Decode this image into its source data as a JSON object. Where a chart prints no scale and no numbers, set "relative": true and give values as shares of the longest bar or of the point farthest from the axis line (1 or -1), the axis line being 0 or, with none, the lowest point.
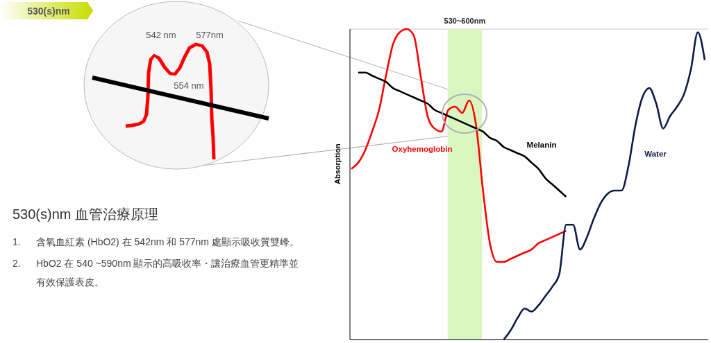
{
  "chart_data": {
    "type": "line",
    "ylabel": "Absorption",
    "relative": true,
    "grid": "y",
    "categories": [
      null,
      null,
      null,
      null,
      null,
      null,
      null,
      null,
      null,
      null,
      null,
      null,
      null,
      null,
      null,
      null,
      null,
      null,
      null,
      null,
      null,
      null,
      null,
      null,
      null,
      null,
      null,
      null,
      null,
      null,
      null,
      null,
      null,
      null,
      null,
      null,
      null,
      null,
      null,
      null,
      null,
      null,
      null,
      null,
      null,
      null,
      null,
      null,
      null,
      null,
      null,
      null
    ],
    "series": [
      {
        "name": "Oxyhemoglobin",
        "color": "#ff0000",
        "values": [
          0.55,
          0.57,
          0.61,
          0.67,
          0.74,
          0.85,
          0.95,
          0.99,
          1.0,
          0.98,
          0.85,
          0.72,
          0.68,
          0.67,
          0.74,
          0.75,
          0.73,
          0.77,
          0.69,
          0.48,
          0.31,
          0.25,
          0.25,
          0.26,
          0.27,
          0.28,
          0.29,
          0.31,
          0.32,
          0.33,
          0.34,
          0.35,
          null,
          null,
          null,
          null,
          null,
          null,
          null,
          null,
          null,
          null,
          null,
          null,
          null,
          null,
          null,
          null,
          null,
          null,
          null,
          null
        ]
      },
      {
        "name": "Melanin",
        "color": "#000000",
        "values": [
          null,
          0.86,
          0.86,
          0.85,
          0.84,
          0.83,
          0.81,
          0.8,
          0.79,
          0.78,
          0.77,
          0.76,
          0.74,
          0.73,
          0.72,
          0.71,
          0.7,
          0.69,
          0.68,
          0.67,
          0.65,
          0.64,
          0.62,
          0.61,
          0.6,
          0.59,
          0.57,
          0.55,
          0.52,
          0.5,
          0.48,
          0.46,
          null,
          null,
          null,
          null,
          null,
          null,
          null,
          null,
          null,
          null,
          null,
          null,
          null,
          null,
          null,
          null,
          null,
          null,
          null,
          null
        ]
      },
      {
        "name": "Water",
        "color": "#0d1a4a",
        "values": [
          null,
          null,
          null,
          null,
          null,
          null,
          null,
          null,
          null,
          null,
          null,
          null,
          null,
          null,
          null,
          null,
          null,
          null,
          null,
          null,
          null,
          null,
          0.0,
          0.03,
          0.07,
          0.1,
          0.09,
          0.11,
          0.14,
          0.17,
          0.21,
          0.37,
          0.37,
          0.29,
          0.33,
          0.39,
          0.44,
          0.47,
          0.48,
          0.48,
          0.56,
          0.69,
          0.78,
          0.81,
          0.76,
          0.68,
          0.72,
          0.75,
          0.79,
          0.87,
          0.99,
          0.9
        ]
      }
    ],
    "annotations": [
      "530(s)nm",
      "530~600nm",
      "530(s)nm 血管治療原理",
      "1.\t含氧血紅素 (HbO2) 在 542nm 和 577nm 處顯示吸收質雙峰。",
      "2.\tHbO2 在 540 ~590nm 顯示的高吸收率・讓治療血管更精準並有效保護表皮。",
      "542 nm",
      "577nm",
      "554 nm"
    ]
  }
}
